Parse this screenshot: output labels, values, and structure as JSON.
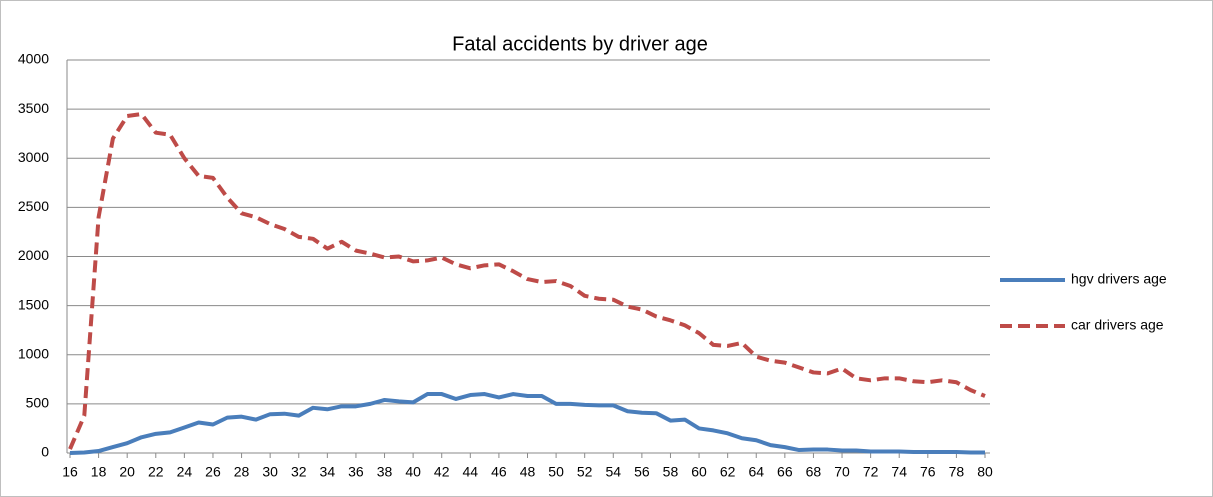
{
  "chart_data": {
    "type": "line",
    "title": "Fatal accidents by driver age",
    "x": [
      16,
      17,
      18,
      19,
      20,
      21,
      22,
      23,
      24,
      25,
      26,
      27,
      28,
      29,
      30,
      31,
      32,
      33,
      34,
      35,
      36,
      37,
      38,
      39,
      40,
      41,
      42,
      43,
      44,
      45,
      46,
      47,
      48,
      49,
      50,
      51,
      52,
      53,
      54,
      55,
      56,
      57,
      58,
      59,
      60,
      61,
      62,
      63,
      64,
      65,
      66,
      67,
      68,
      69,
      70,
      71,
      72,
      73,
      74,
      75,
      76,
      77,
      78,
      79,
      80
    ],
    "series": [
      {
        "name": "hgv drivers age",
        "color": "#4a7ebb",
        "dashed": false,
        "values": [
          0,
          5,
          20,
          60,
          100,
          160,
          195,
          210,
          260,
          310,
          290,
          360,
          370,
          340,
          395,
          400,
          380,
          460,
          445,
          475,
          475,
          500,
          540,
          525,
          515,
          600,
          600,
          550,
          590,
          600,
          565,
          600,
          580,
          580,
          500,
          500,
          490,
          485,
          485,
          425,
          410,
          405,
          330,
          340,
          250,
          230,
          200,
          150,
          130,
          80,
          60,
          30,
          35,
          35,
          25,
          25,
          15,
          15,
          15,
          10,
          10,
          10,
          10,
          5,
          5
        ]
      },
      {
        "name": "car drivers age",
        "color": "#be4b48",
        "dashed": true,
        "values": [
          40,
          380,
          2400,
          3200,
          3430,
          3450,
          3260,
          3240,
          3000,
          2820,
          2800,
          2600,
          2440,
          2400,
          2330,
          2280,
          2200,
          2180,
          2080,
          2150,
          2060,
          2030,
          1990,
          2000,
          1950,
          1960,
          1990,
          1920,
          1880,
          1910,
          1920,
          1850,
          1770,
          1740,
          1750,
          1700,
          1600,
          1570,
          1560,
          1490,
          1460,
          1390,
          1350,
          1300,
          1220,
          1100,
          1090,
          1120,
          980,
          940,
          920,
          870,
          820,
          810,
          860,
          760,
          740,
          760,
          760,
          730,
          720,
          740,
          720,
          640,
          580
        ]
      }
    ],
    "xlim": [
      16,
      80
    ],
    "xticks": [
      16,
      18,
      20,
      22,
      24,
      26,
      28,
      30,
      32,
      34,
      36,
      38,
      40,
      42,
      44,
      46,
      48,
      50,
      52,
      54,
      56,
      58,
      60,
      62,
      64,
      66,
      68,
      70,
      72,
      74,
      76,
      78,
      80
    ],
    "ylim": [
      0,
      4000
    ],
    "yticks": [
      0,
      500,
      1000,
      1500,
      2000,
      2500,
      3000,
      3500,
      4000
    ],
    "grid": true,
    "legend": "right"
  }
}
